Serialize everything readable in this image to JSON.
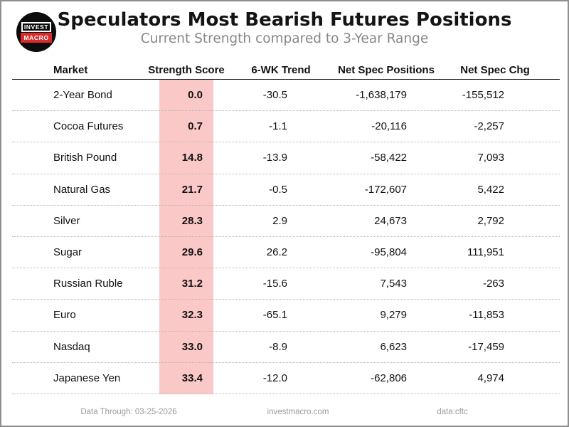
{
  "chart_data": {
    "type": "table",
    "title": "Speculators Most Bearish Futures Positions",
    "subtitle": "Current Strength compared to 3-Year Range",
    "columns": [
      "Market",
      "Strength Score",
      "6-WK Trend",
      "Net Spec Positions",
      "Net Spec Chg"
    ],
    "rows": [
      {
        "market": "2-Year Bond",
        "strength_score": "0.0",
        "trend_6wk": "-30.5",
        "net_spec_positions": "-1,638,179",
        "net_spec_chg": "-155,512"
      },
      {
        "market": "Cocoa Futures",
        "strength_score": "0.7",
        "trend_6wk": "-1.1",
        "net_spec_positions": "-20,116",
        "net_spec_chg": "-2,257"
      },
      {
        "market": "British Pound",
        "strength_score": "14.8",
        "trend_6wk": "-13.9",
        "net_spec_positions": "-58,422",
        "net_spec_chg": "7,093"
      },
      {
        "market": "Natural Gas",
        "strength_score": "21.7",
        "trend_6wk": "-0.5",
        "net_spec_positions": "-172,607",
        "net_spec_chg": "5,422"
      },
      {
        "market": "Silver",
        "strength_score": "28.3",
        "trend_6wk": "2.9",
        "net_spec_positions": "24,673",
        "net_spec_chg": "2,792"
      },
      {
        "market": "Sugar",
        "strength_score": "29.6",
        "trend_6wk": "26.2",
        "net_spec_positions": "-95,804",
        "net_spec_chg": "111,951"
      },
      {
        "market": "Russian Ruble",
        "strength_score": "31.2",
        "trend_6wk": "-15.6",
        "net_spec_positions": "7,543",
        "net_spec_chg": "-263"
      },
      {
        "market": "Euro",
        "strength_score": "32.3",
        "trend_6wk": "-65.1",
        "net_spec_positions": "9,279",
        "net_spec_chg": "-11,853"
      },
      {
        "market": "Nasdaq",
        "strength_score": "33.0",
        "trend_6wk": "-8.9",
        "net_spec_positions": "6,623",
        "net_spec_chg": "-17,459"
      },
      {
        "market": "Japanese Yen",
        "strength_score": "33.4",
        "trend_6wk": "-12.0",
        "net_spec_positions": "-62,806",
        "net_spec_chg": "4,974"
      }
    ]
  },
  "header": {
    "title": "Speculators Most Bearish Futures Positions",
    "subtitle": "Current Strength compared to 3-Year Range",
    "logo": {
      "line1": "INVEST",
      "line2": "MACRO"
    }
  },
  "footer": {
    "data_through": "Data Through: 03-25-2026",
    "site": "investmacro.com",
    "source": "data:cftc"
  },
  "colors": {
    "strength_highlight": "#fbc8c8",
    "logo_red": "#d92b2b",
    "logo_black": "#0c0c0c",
    "subtitle_gray": "#878787",
    "footer_gray": "#9b9b9b",
    "border_gray": "#8f8f8f",
    "row_separator": "#b5b5b5",
    "header_rule": "#1a1a1a"
  }
}
